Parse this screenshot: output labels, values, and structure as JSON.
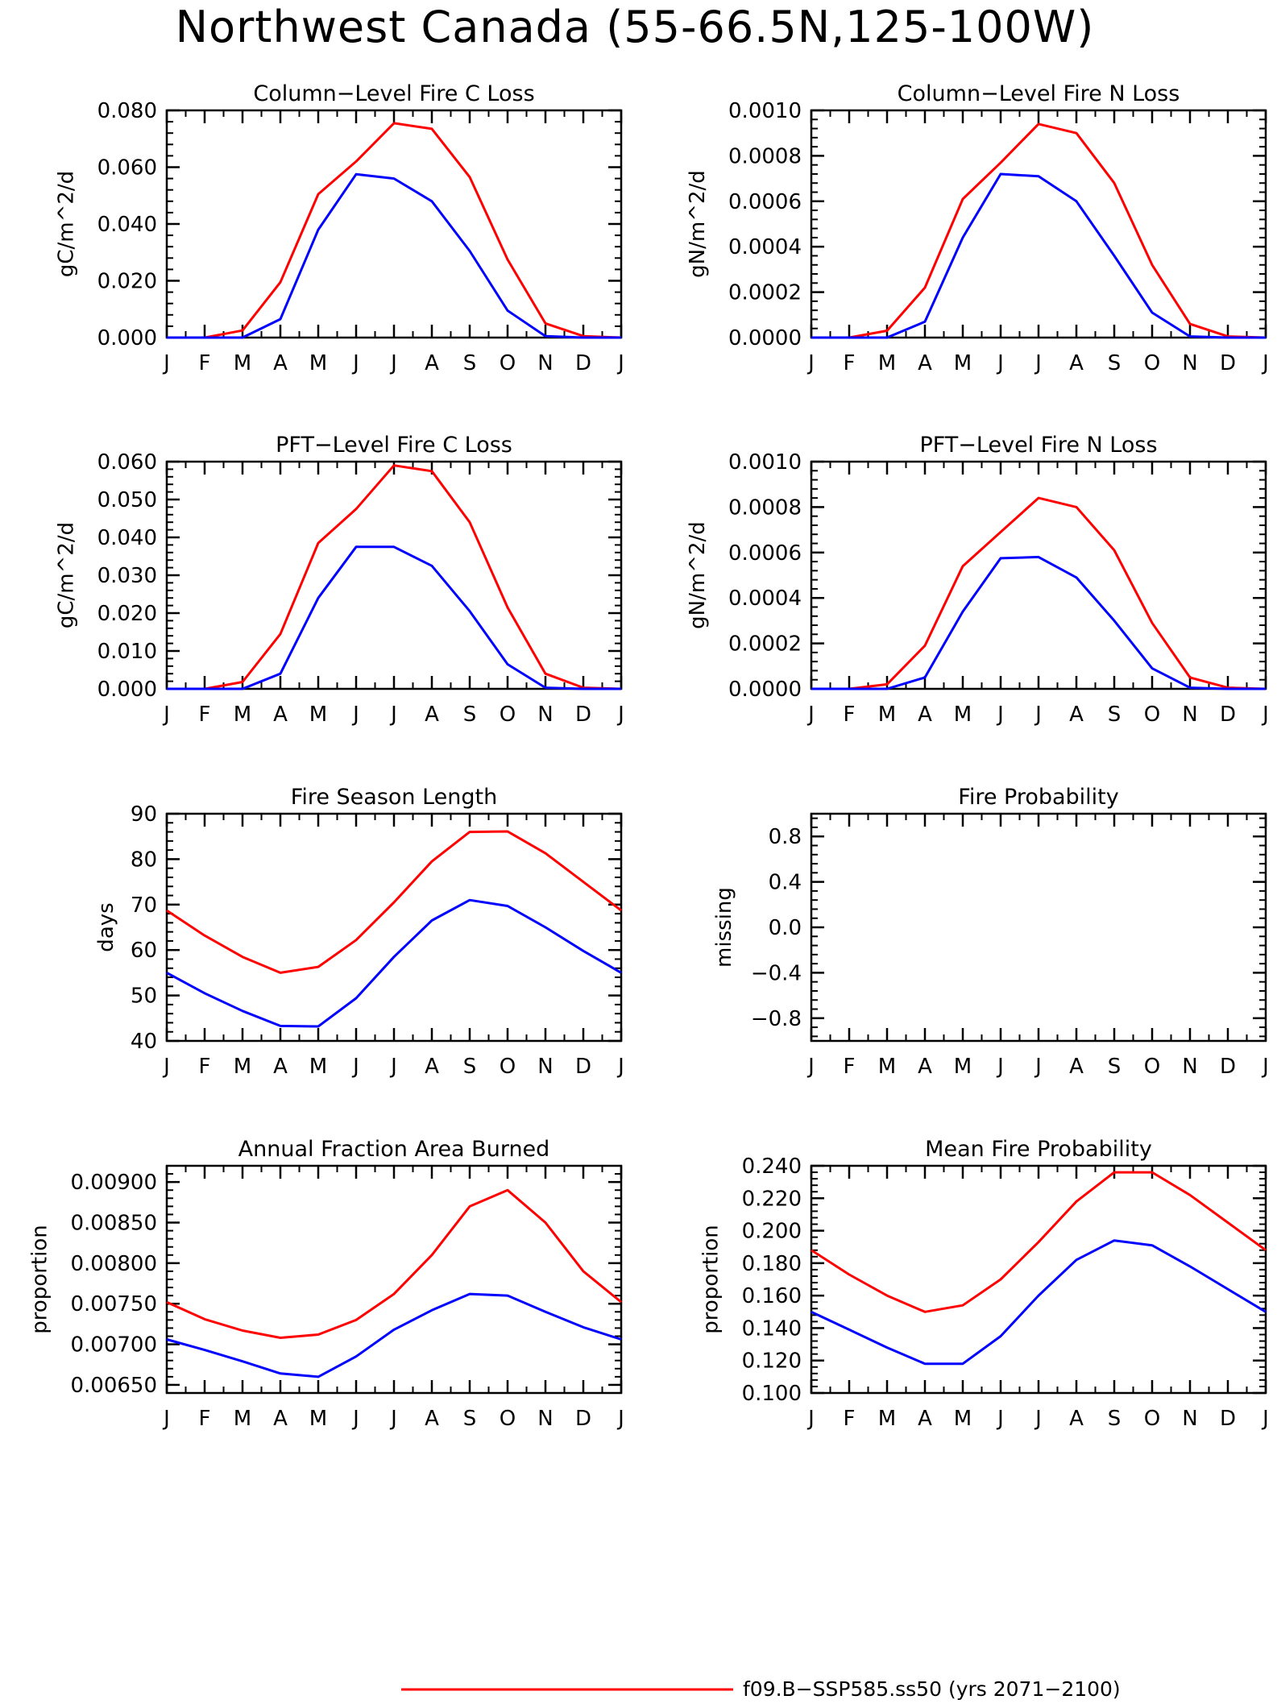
{
  "figure": {
    "title": "Northwest Canada (55-66.5N,125-100W)",
    "legend": [
      {
        "label": "f09.B-SSP585.ss50 (yrs 2071-2100)",
        "color": "#ff0000"
      }
    ]
  },
  "chart_data": [
    {
      "type": "line",
      "title": "Column-Level Fire C Loss",
      "ylabel": "gC/m^2/d",
      "categories": [
        "J",
        "F",
        "M",
        "A",
        "M",
        "J",
        "J",
        "A",
        "S",
        "O",
        "N",
        "D",
        "J"
      ],
      "ylim": [
        0,
        0.08
      ],
      "yticks": [
        "0.000",
        "0.020",
        "0.040",
        "0.060",
        "0.080"
      ],
      "ytick_values": [
        0,
        0.02,
        0.04,
        0.06,
        0.08
      ],
      "series": [
        {
          "color": "#ff0000",
          "values": [
            0,
            0,
            0.0025,
            0.0195,
            0.0505,
            0.062,
            0.0755,
            0.0735,
            0.0565,
            0.0275,
            0.005,
            0.0005,
            0
          ]
        },
        {
          "color": "#0000ff",
          "values": [
            0,
            0,
            0,
            0.0065,
            0.038,
            0.0575,
            0.056,
            0.048,
            0.0305,
            0.0095,
            0.0005,
            0,
            0
          ]
        }
      ]
    },
    {
      "type": "line",
      "title": "Column-Level Fire N Loss",
      "ylabel": "gN/m^2/d",
      "categories": [
        "J",
        "F",
        "M",
        "A",
        "M",
        "J",
        "J",
        "A",
        "S",
        "O",
        "N",
        "D",
        "J"
      ],
      "ylim": [
        0,
        0.001
      ],
      "yticks": [
        "0.0000",
        "0.0002",
        "0.0004",
        "0.0006",
        "0.0008",
        "0.0010"
      ],
      "ytick_values": [
        0,
        0.0002,
        0.0004,
        0.0006,
        0.0008,
        0.001
      ],
      "series": [
        {
          "color": "#ff0000",
          "values": [
            0,
            0,
            3e-05,
            0.00022,
            0.00061,
            0.00077,
            0.00094,
            0.0009,
            0.00068,
            0.00032,
            6e-05,
            5e-06,
            0
          ]
        },
        {
          "color": "#0000ff",
          "values": [
            0,
            0,
            0,
            7e-05,
            0.00044,
            0.00072,
            0.00071,
            0.0006,
            0.00036,
            0.00011,
            5e-06,
            0,
            0
          ]
        }
      ]
    },
    {
      "type": "line",
      "title": "PFT-Level Fire C Loss",
      "ylabel": "gC/m^2/d",
      "categories": [
        "J",
        "F",
        "M",
        "A",
        "M",
        "J",
        "J",
        "A",
        "S",
        "O",
        "N",
        "D",
        "J"
      ],
      "ylim": [
        0,
        0.06
      ],
      "yticks": [
        "0.000",
        "0.010",
        "0.020",
        "0.030",
        "0.040",
        "0.050",
        "0.060"
      ],
      "ytick_values": [
        0,
        0.01,
        0.02,
        0.03,
        0.04,
        0.05,
        0.06
      ],
      "series": [
        {
          "color": "#ff0000",
          "values": [
            0,
            0,
            0.0018,
            0.0145,
            0.0385,
            0.0475,
            0.059,
            0.0575,
            0.044,
            0.0215,
            0.004,
            0.0003,
            0
          ]
        },
        {
          "color": "#0000ff",
          "values": [
            0,
            0,
            0,
            0.004,
            0.024,
            0.0375,
            0.0375,
            0.0325,
            0.0205,
            0.0065,
            0.0003,
            0,
            0
          ]
        }
      ]
    },
    {
      "type": "line",
      "title": "PFT-Level Fire N Loss",
      "ylabel": "gN/m^2/d",
      "categories": [
        "J",
        "F",
        "M",
        "A",
        "M",
        "J",
        "J",
        "A",
        "S",
        "O",
        "N",
        "D",
        "J"
      ],
      "ylim": [
        0,
        0.001
      ],
      "yticks": [
        "0.0000",
        "0.0002",
        "0.0004",
        "0.0006",
        "0.0008",
        "0.0010"
      ],
      "ytick_values": [
        0,
        0.0002,
        0.0004,
        0.0006,
        0.0008,
        0.001
      ],
      "series": [
        {
          "color": "#ff0000",
          "values": [
            0,
            0,
            2e-05,
            0.00019,
            0.00054,
            0.00069,
            0.00084,
            0.0008,
            0.00061,
            0.00029,
            5e-05,
            5e-06,
            0
          ]
        },
        {
          "color": "#0000ff",
          "values": [
            0,
            0,
            0,
            5e-05,
            0.00034,
            0.000575,
            0.00058,
            0.00049,
            0.0003,
            9e-05,
            5e-06,
            0,
            0
          ]
        }
      ]
    },
    {
      "type": "line",
      "title": "Fire Season Length",
      "ylabel": "days",
      "categories": [
        "J",
        "F",
        "M",
        "A",
        "M",
        "J",
        "J",
        "A",
        "S",
        "O",
        "N",
        "D",
        "J"
      ],
      "ylim": [
        40,
        90
      ],
      "yticks": [
        "40",
        "50",
        "60",
        "70",
        "80",
        "90"
      ],
      "ytick_values": [
        40,
        50,
        60,
        70,
        80,
        90
      ],
      "series": [
        {
          "color": "#ff0000",
          "values": [
            68.7,
            63.2,
            58.5,
            55.0,
            56.3,
            62.2,
            70.5,
            79.5,
            86.0,
            86.1,
            81.3,
            75.0,
            68.7
          ]
        },
        {
          "color": "#0000ff",
          "values": [
            55.0,
            50.5,
            46.6,
            43.3,
            43.2,
            49.4,
            58.5,
            66.5,
            71.0,
            69.7,
            65.0,
            59.8,
            55.0
          ]
        }
      ]
    },
    {
      "type": "line",
      "title": "Fire Probability",
      "ylabel": "missing",
      "categories": [
        "J",
        "F",
        "M",
        "A",
        "M",
        "J",
        "J",
        "A",
        "S",
        "O",
        "N",
        "D",
        "J"
      ],
      "ylim": [
        -1,
        1
      ],
      "yticks": [
        "-0.8",
        "-0.4",
        "0.0",
        "0.4",
        "0.8"
      ],
      "ytick_values": [
        -0.8,
        -0.4,
        0,
        0.4,
        0.8
      ],
      "series": []
    },
    {
      "type": "line",
      "title": "Annual Fraction Area Burned",
      "ylabel": "proportion",
      "categories": [
        "J",
        "F",
        "M",
        "A",
        "M",
        "J",
        "J",
        "A",
        "S",
        "O",
        "N",
        "D",
        "J"
      ],
      "ylim": [
        0.0064,
        0.0092
      ],
      "yticks": [
        "0.00650",
        "0.00700",
        "0.00750",
        "0.00800",
        "0.00850",
        "0.00900"
      ],
      "ytick_values": [
        0.0065,
        0.007,
        0.0075,
        0.008,
        0.0085,
        0.009
      ],
      "series": [
        {
          "color": "#ff0000",
          "values": [
            0.00752,
            0.00731,
            0.00717,
            0.00708,
            0.00712,
            0.0073,
            0.00762,
            0.0081,
            0.0087,
            0.0089,
            0.0085,
            0.0079,
            0.00752
          ]
        },
        {
          "color": "#0000ff",
          "values": [
            0.00706,
            0.00693,
            0.00679,
            0.00664,
            0.0066,
            0.00685,
            0.00718,
            0.00742,
            0.00762,
            0.0076,
            0.0074,
            0.00721,
            0.00706
          ]
        }
      ]
    },
    {
      "type": "line",
      "title": "Mean Fire Probability",
      "ylabel": "proportion",
      "categories": [
        "J",
        "F",
        "M",
        "A",
        "M",
        "J",
        "J",
        "A",
        "S",
        "O",
        "N",
        "D",
        "J"
      ],
      "ylim": [
        0.1,
        0.24
      ],
      "yticks": [
        "0.100",
        "0.120",
        "0.140",
        "0.160",
        "0.180",
        "0.200",
        "0.220",
        "0.240"
      ],
      "ytick_values": [
        0.1,
        0.12,
        0.14,
        0.16,
        0.18,
        0.2,
        0.22,
        0.24
      ],
      "series": [
        {
          "color": "#ff0000",
          "values": [
            0.188,
            0.173,
            0.16,
            0.15,
            0.154,
            0.17,
            0.193,
            0.218,
            0.236,
            0.236,
            0.222,
            0.205,
            0.188
          ]
        },
        {
          "color": "#0000ff",
          "values": [
            0.15,
            0.139,
            0.128,
            0.118,
            0.118,
            0.135,
            0.16,
            0.182,
            0.194,
            0.191,
            0.178,
            0.164,
            0.15
          ]
        }
      ]
    }
  ]
}
